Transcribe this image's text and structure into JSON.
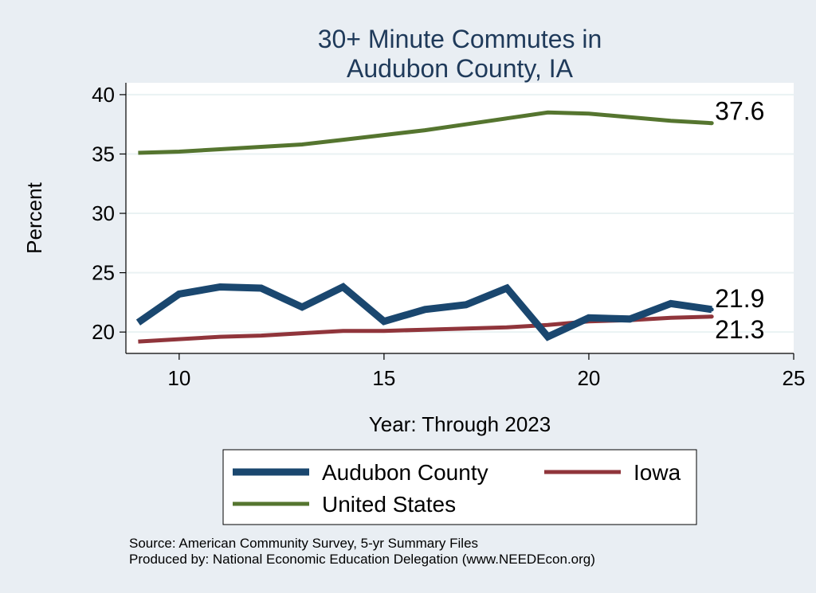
{
  "chart_data": {
    "type": "line",
    "title": [
      "30+ Minute Commutes in",
      "Audubon County, IA"
    ],
    "xlabel": "Year: Through 2023",
    "ylabel": "Percent",
    "xlim": [
      8.7,
      25
    ],
    "ylim": [
      18.2,
      41
    ],
    "x_ticks": [
      10,
      15,
      20,
      25
    ],
    "y_ticks": [
      20,
      25,
      30,
      35,
      40
    ],
    "grid": true,
    "legend_position": "bottom",
    "series": [
      {
        "name": "Audubon County",
        "color": "#1a476f",
        "width": 9,
        "x": [
          9,
          10,
          11,
          12,
          13,
          14,
          15,
          16,
          17,
          18,
          19,
          20,
          21,
          22,
          23
        ],
        "values": [
          20.8,
          23.2,
          23.8,
          23.7,
          22.1,
          23.8,
          20.9,
          21.9,
          22.3,
          23.7,
          19.6,
          21.2,
          21.1,
          22.4,
          21.9
        ],
        "end_label": "21.9"
      },
      {
        "name": "Iowa",
        "color": "#90353b",
        "width": 5,
        "x": [
          9,
          10,
          11,
          12,
          13,
          14,
          15,
          16,
          17,
          18,
          19,
          20,
          21,
          22,
          23
        ],
        "values": [
          19.2,
          19.4,
          19.6,
          19.7,
          19.9,
          20.1,
          20.1,
          20.2,
          20.3,
          20.4,
          20.6,
          20.9,
          21.0,
          21.2,
          21.3
        ],
        "end_label": "21.3"
      },
      {
        "name": "United States",
        "color": "#55752f",
        "width": 5,
        "x": [
          9,
          10,
          11,
          12,
          13,
          14,
          15,
          16,
          17,
          18,
          19,
          20,
          21,
          22,
          23
        ],
        "values": [
          35.1,
          35.2,
          35.4,
          35.6,
          35.8,
          36.2,
          36.6,
          37.0,
          37.5,
          38.0,
          38.5,
          38.4,
          38.1,
          37.8,
          37.6
        ],
        "end_label": "37.6"
      }
    ],
    "source_lines": [
      "Source: American Community Survey, 5-yr Summary Files",
      "Produced by: National Economic Education Delegation (www.NEEDEcon.org)"
    ]
  }
}
